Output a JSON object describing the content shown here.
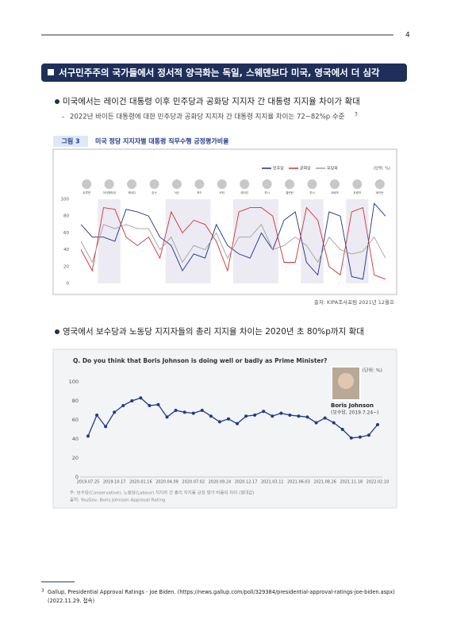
{
  "page_number": "4",
  "section_title": "서구민주주의 국가들에서 정서적 양극화는 독일, 스웨덴보다 미국, 영국에서 더 심각",
  "bullets": [
    {
      "text": "미국에서는 레이건 대통령 이후 민주당과 공화당 지지자 간 대통령 지지율 차이가 확대",
      "sub": "2022년 바이든 대통령에 대한 민주당과 공화당 지지자 간 대통령 지지율 차이는 72~82%p 수준",
      "sub_note": "3"
    },
    {
      "text": "영국에서 보수당과 노동당 지지자들의 총리 지지율 차이는 2020년 초 80%p까지 확대"
    }
  ],
  "figure": {
    "label": "그림 3",
    "caption": "미국 정당 지지자별 대통령 직무수행 긍정평가비율",
    "source": "출처: KIPA조사포럼 2021년 12월호"
  },
  "chart_data": [
    {
      "type": "line",
      "unit": "(단위: %)",
      "categories": [
        "트루먼",
        null,
        "아이젠하워",
        null,
        "케네디",
        null,
        "존슨",
        null,
        "닉슨",
        null,
        "포드",
        null,
        "카터",
        null,
        "레이건",
        null,
        "부시",
        null,
        "클린턴",
        null,
        "부시",
        null,
        "오바마",
        null,
        "트럼프",
        null,
        "바이든",
        null
      ],
      "series": [
        {
          "name": "민주당",
          "color": "#1c2f8a",
          "values": [
            70,
            55,
            55,
            50,
            88,
            85,
            80,
            55,
            45,
            15,
            35,
            30,
            70,
            45,
            35,
            30,
            60,
            40,
            75,
            85,
            25,
            10,
            85,
            80,
            8,
            5,
            95,
            80
          ]
        },
        {
          "name": "공화당",
          "color": "#d62e2e",
          "values": [
            40,
            15,
            90,
            88,
            55,
            45,
            55,
            30,
            85,
            60,
            75,
            70,
            50,
            15,
            85,
            90,
            90,
            80,
            25,
            25,
            90,
            75,
            20,
            10,
            85,
            90,
            10,
            5
          ]
        },
        {
          "name": "무당파",
          "color": "#a0a0a0",
          "values": [
            50,
            25,
            70,
            65,
            70,
            65,
            65,
            40,
            55,
            25,
            45,
            40,
            60,
            30,
            55,
            55,
            70,
            40,
            45,
            55,
            45,
            25,
            55,
            40,
            35,
            38,
            55,
            30
          ]
        }
      ],
      "ylim": [
        0,
        100
      ],
      "yticks": [
        0,
        20,
        40,
        60,
        80,
        100
      ]
    },
    {
      "type": "line",
      "title": "Q. Do you think that Boris Johnson is doing well or badly as Prime Minister?",
      "unit": "(단위: %)",
      "annotation": {
        "name": "Boris Johnson",
        "detail": "(보수당, 2019.7.24~)"
      },
      "categories": [
        "2019.07.25",
        null,
        null,
        "2019.10.17",
        null,
        null,
        "2020.01.16",
        null,
        null,
        "2020.04.09",
        null,
        null,
        "2020.07.02",
        null,
        null,
        "2020.09.24",
        null,
        null,
        "2020.12.17",
        null,
        null,
        "2021.03.11",
        null,
        null,
        "2021.06.03",
        null,
        null,
        "2021.08.26",
        null,
        null,
        "2021.11.18",
        null,
        null,
        "2022.02.10"
      ],
      "series": [
        {
          "name": "지지율 차이",
          "color": "#1f3a8a",
          "values": [
            43,
            65,
            53,
            68,
            75,
            80,
            83,
            75,
            76,
            63,
            70,
            68,
            67,
            70,
            64,
            58,
            61,
            56,
            64,
            65,
            69,
            64,
            67,
            65,
            64,
            63,
            57,
            62,
            57,
            50,
            41,
            42,
            44,
            55
          ]
        }
      ],
      "ylim": [
        0,
        100
      ],
      "yticks": [
        0,
        20,
        40,
        60,
        80,
        100
      ],
      "notes": [
        "주: 보수당(Conservative), 노동당(Labour) 지지자 간 총리 지지율 긍정 평가 비율의 차이 (절대값)",
        "출처: YouGov, Boris Johnson Approval Rating"
      ]
    }
  ],
  "footnote": {
    "mark": "3",
    "text": "Gallup, Presidential Approval Ratings - Joe Biden. (https://news.gallup.com/poll/329384/presidential-approval-ratings-joe-biden.aspx)",
    "text2": "(2022.11.29. 접속)"
  }
}
